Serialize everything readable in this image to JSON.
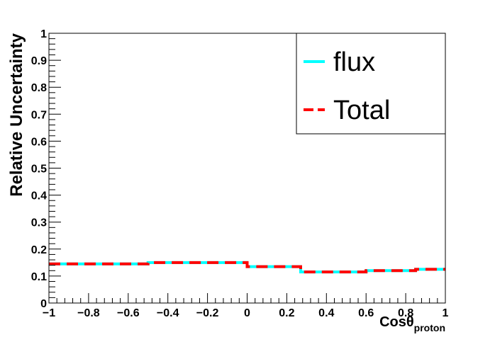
{
  "chart_data": {
    "type": "line",
    "step": true,
    "xlim": [
      -1,
      1
    ],
    "ylim": [
      0,
      1
    ],
    "xlabel": "Cosθ",
    "xlabel_sub": "proton",
    "ylabel": "Relative Uncertainty",
    "x_ticks": [
      -1,
      -0.8,
      -0.6,
      -0.4,
      -0.2,
      0,
      0.2,
      0.4,
      0.6,
      0.8,
      1
    ],
    "x_tick_labels": [
      "−1",
      "−0.8",
      "−0.6",
      "−0.4",
      "−0.2",
      "0",
      "0.2",
      "0.4",
      "0.6",
      "0.8",
      "1"
    ],
    "y_ticks": [
      0,
      0.1,
      0.2,
      0.3,
      0.4,
      0.5,
      0.6,
      0.7,
      0.8,
      0.9,
      1
    ],
    "y_tick_labels": [
      "0",
      "0.1",
      "0.2",
      "0.3",
      "0.4",
      "0.5",
      "0.6",
      "0.7",
      "0.8",
      "0.9",
      "1"
    ],
    "grid": false,
    "legend_position": "top-right",
    "bin_edges": [
      -1,
      -0.5,
      0,
      0.27,
      0.6,
      0.85,
      1
    ],
    "series": [
      {
        "name": "flux",
        "values": [
          0.145,
          0.15,
          0.135,
          0.115,
          0.12,
          0.125
        ],
        "color": "#00ffff",
        "style": "solid"
      },
      {
        "name": "Total",
        "values": [
          0.145,
          0.15,
          0.135,
          0.115,
          0.12,
          0.125
        ],
        "color": "#ff0000",
        "style": "dashed"
      }
    ]
  }
}
